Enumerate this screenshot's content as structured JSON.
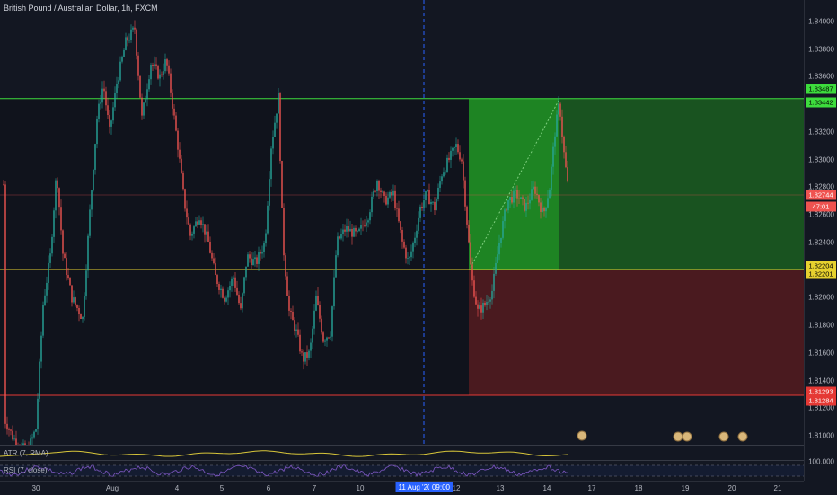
{
  "title": "British Pound / Australian Dollar, 1h, FXCM",
  "price_axis": {
    "ticks": [
      "1.84000",
      "1.83800",
      "1.83600",
      "1.83400",
      "1.83200",
      "1.83000",
      "1.82800",
      "1.82600",
      "1.82400",
      "1.82200",
      "1.82000",
      "1.81800",
      "1.81600",
      "1.81400",
      "1.81200",
      "1.81000",
      "100.000"
    ],
    "tags": {
      "upper_green_1": "1.83487",
      "upper_green_2": "1.83442",
      "current_price": "1.82744",
      "countdown": "47:01",
      "yellow_1": "1.82204",
      "yellow_2": "1.82201",
      "stop_1": "1.81293",
      "stop_2": "1.81284"
    }
  },
  "time_axis": {
    "labels": [
      "30",
      "Aug",
      "4",
      "5",
      "6",
      "7",
      "10",
      "11 Aug '20",
      "09:00",
      "12",
      "13",
      "14",
      "17",
      "18",
      "19",
      "20",
      "21"
    ]
  },
  "indicators": {
    "atr_label": "ATR (7, RMA)",
    "rsi_label": "RSI (7, close)"
  },
  "colors": {
    "background": "#131722",
    "up_candle": "#26a69a",
    "down_candle": "#ef5350",
    "profit_zone": "#1b8a1b",
    "loss_zone": "#4a1a1f",
    "green_line": "#3ddc3d",
    "yellow_line": "#e6d12f",
    "red_line": "#e53935",
    "crosshair": "#2962ff"
  }
}
